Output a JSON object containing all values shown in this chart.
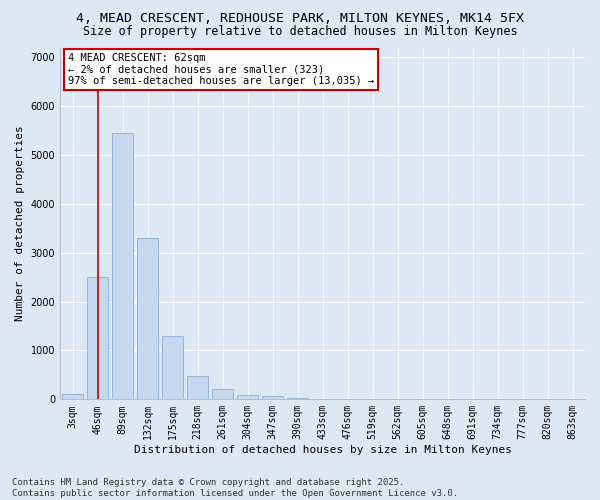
{
  "title1": "4, MEAD CRESCENT, REDHOUSE PARK, MILTON KEYNES, MK14 5FX",
  "title2": "Size of property relative to detached houses in Milton Keynes",
  "xlabel": "Distribution of detached houses by size in Milton Keynes",
  "ylabel": "Number of detached properties",
  "bar_labels": [
    "3sqm",
    "46sqm",
    "89sqm",
    "132sqm",
    "175sqm",
    "218sqm",
    "261sqm",
    "304sqm",
    "347sqm",
    "390sqm",
    "433sqm",
    "476sqm",
    "519sqm",
    "562sqm",
    "605sqm",
    "648sqm",
    "691sqm",
    "734sqm",
    "777sqm",
    "820sqm",
    "863sqm"
  ],
  "bar_heights": [
    100,
    2500,
    5450,
    3300,
    1300,
    480,
    220,
    95,
    60,
    30,
    0,
    0,
    0,
    0,
    0,
    0,
    0,
    0,
    0,
    0,
    0
  ],
  "bar_color": "#c6d9f0",
  "bar_edge_color": "#8eafd4",
  "vline_x": 1,
  "vline_color": "#cc0000",
  "annotation_text": "4 MEAD CRESCENT: 62sqm\n← 2% of detached houses are smaller (323)\n97% of semi-detached houses are larger (13,035) →",
  "annotation_box_color": "#cc0000",
  "ylim": [
    0,
    7200
  ],
  "yticks": [
    0,
    1000,
    2000,
    3000,
    4000,
    5000,
    6000,
    7000
  ],
  "bg_color": "#dde8f5",
  "plot_bg_color": "#dde8f5",
  "footer1": "Contains HM Land Registry data © Crown copyright and database right 2025.",
  "footer2": "Contains public sector information licensed under the Open Government Licence v3.0.",
  "title1_fontsize": 9.5,
  "title2_fontsize": 8.5,
  "axis_label_fontsize": 8,
  "tick_fontsize": 7,
  "annotation_fontsize": 7.5,
  "footer_fontsize": 6.5
}
